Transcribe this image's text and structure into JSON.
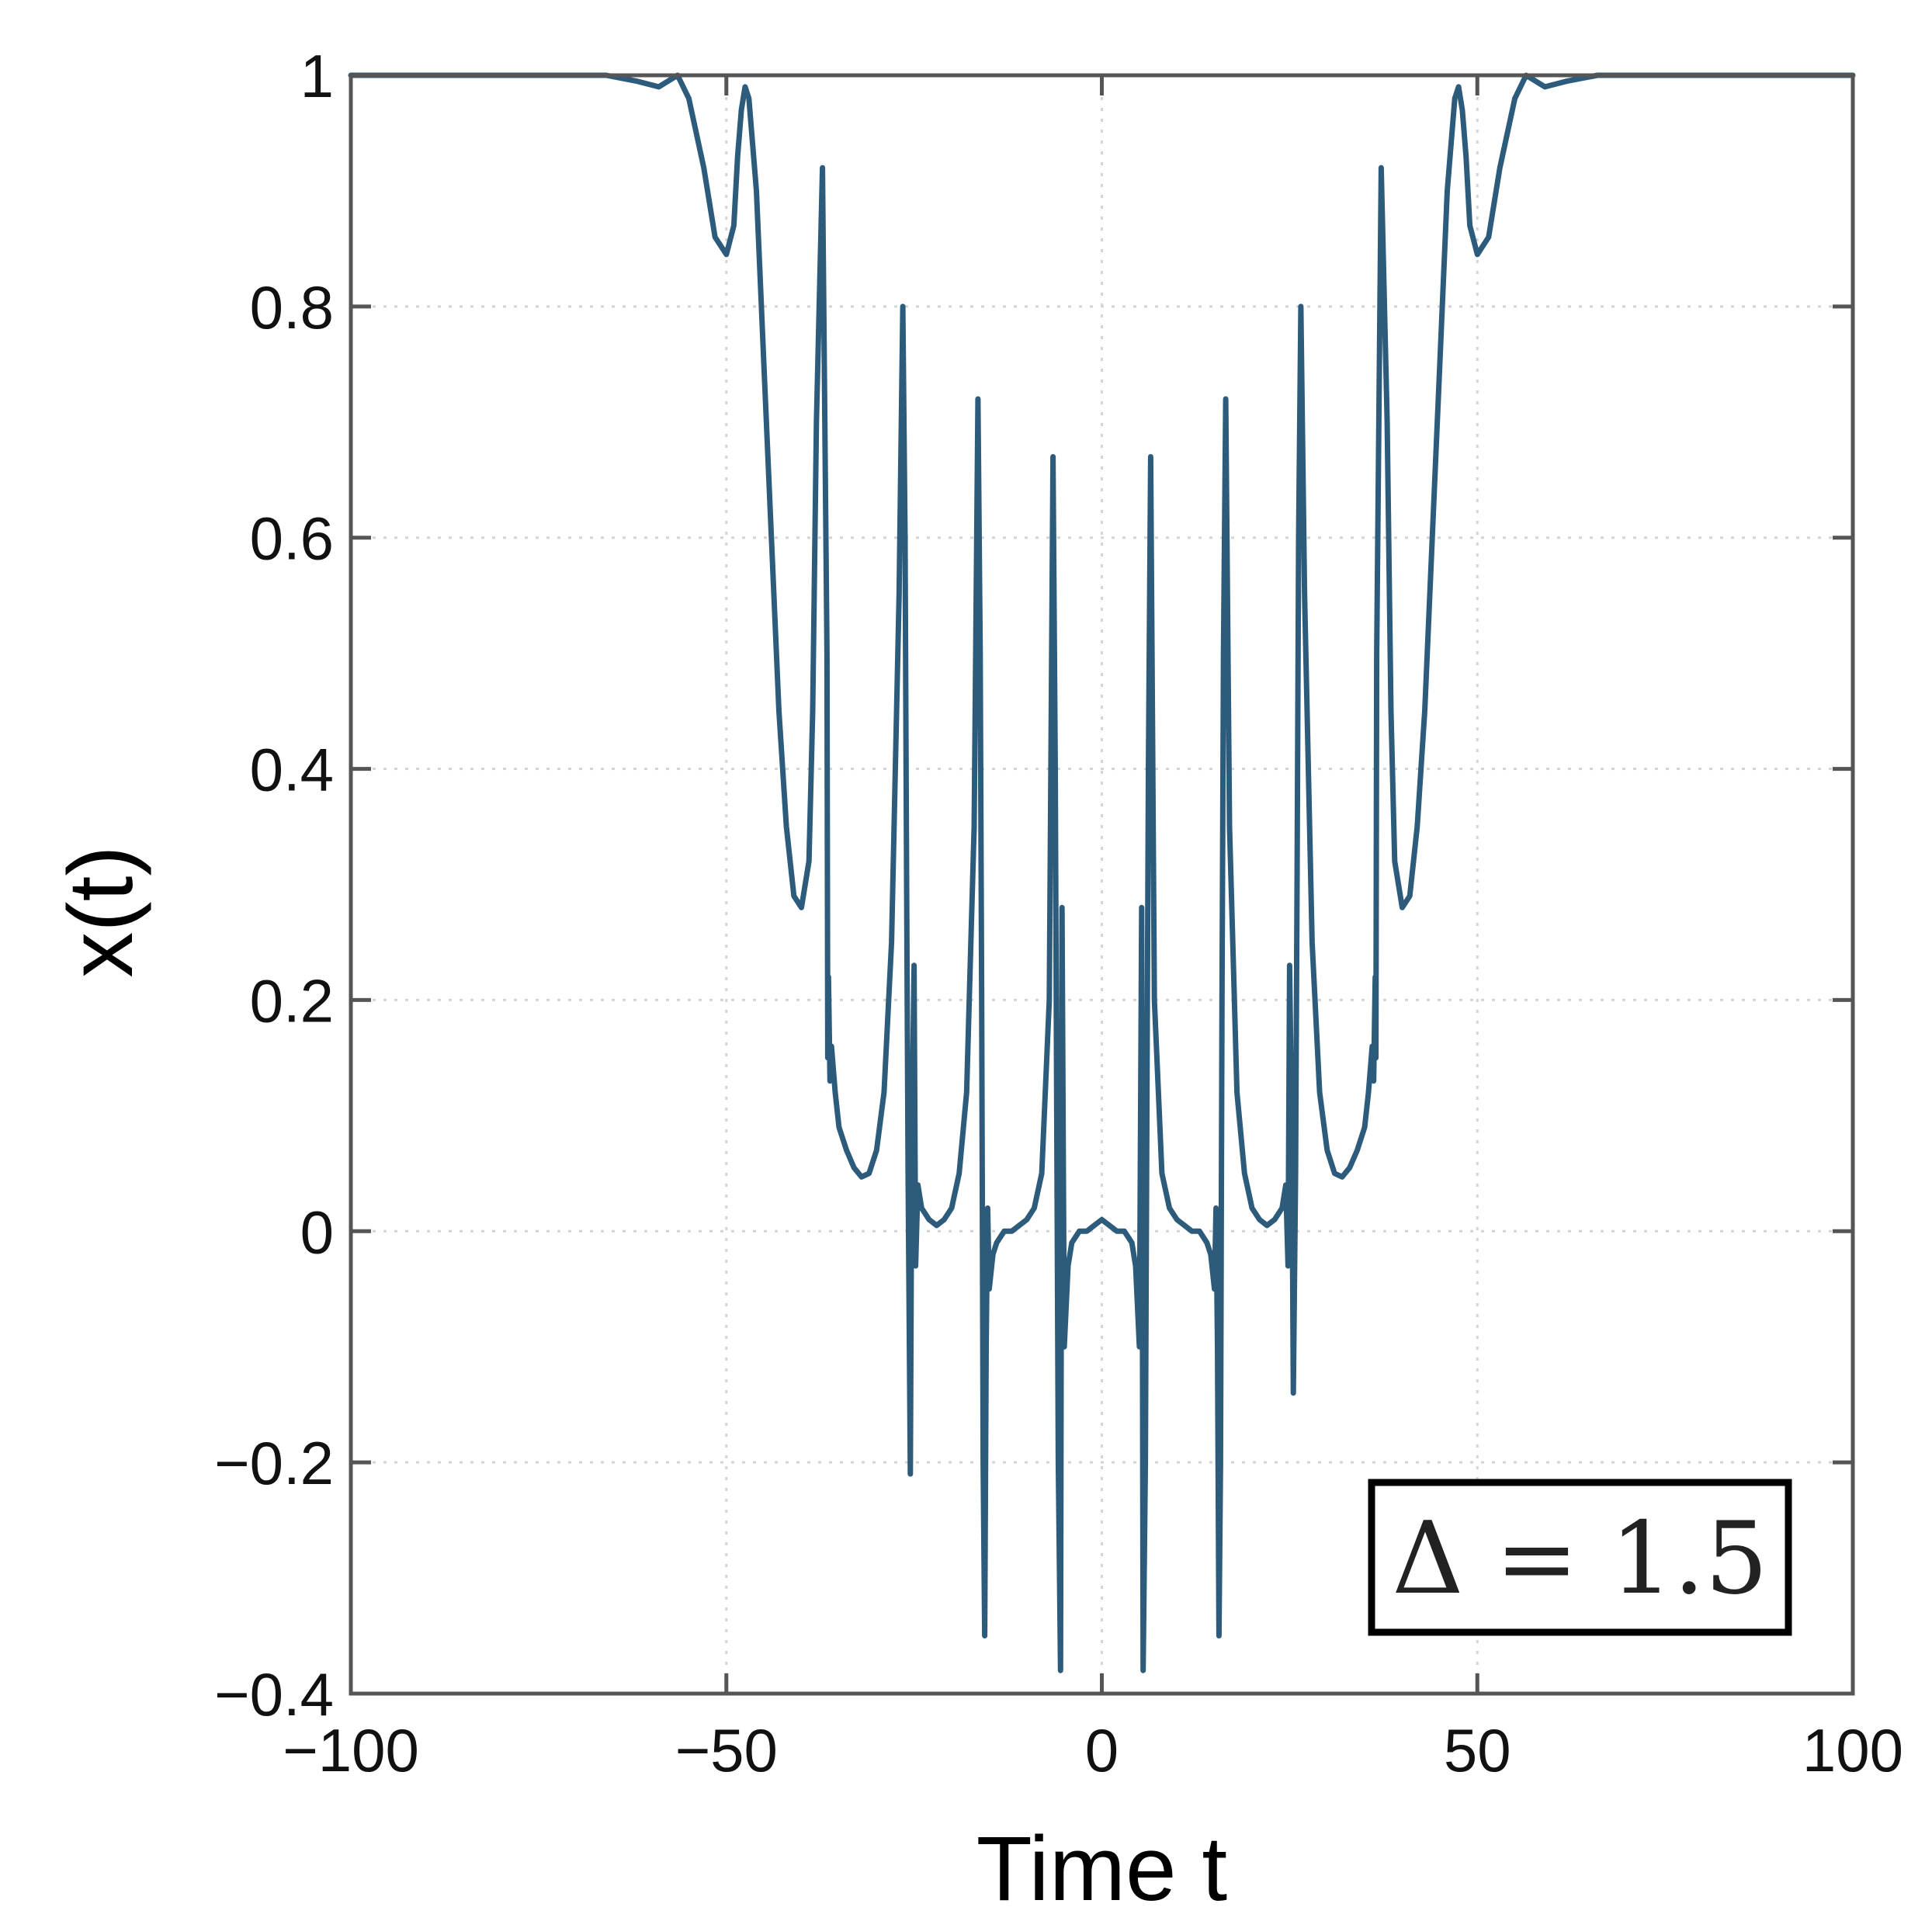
{
  "chart_data": {
    "type": "line",
    "title": "",
    "xlabel": "Time t",
    "ylabel": "x(t)",
    "xlim": [
      -100,
      100
    ],
    "ylim": [
      -0.4,
      1
    ],
    "x_ticks": [
      -100,
      -50,
      0,
      50,
      100
    ],
    "x_tick_labels": [
      "−100",
      "−50",
      "0",
      "50",
      "100"
    ],
    "y_ticks": [
      -0.4,
      -0.2,
      0,
      0.2,
      0.4,
      0.6,
      0.8,
      1
    ],
    "y_tick_labels": [
      "−0.4",
      "−0.2",
      "0",
      "0.2",
      "0.4",
      "0.6",
      "0.8",
      "1"
    ],
    "grid": true,
    "annotation": "Δ = 1.5",
    "annotation_position": "bottom-right",
    "series": [
      {
        "color": "#2d5b7b",
        "x": [
          -100,
          -66,
          -62,
          -59,
          -56.5,
          -55,
          -53,
          -51.5,
          -50,
          -49,
          -48.5,
          -48,
          -47.5,
          -47,
          -46,
          -45,
          -44,
          -43,
          -42,
          -41,
          -40,
          -39,
          -38.5,
          -38,
          -37.2,
          -36.6,
          -36.5,
          -36.4,
          -36.2,
          -36,
          -35.5,
          -35,
          -34,
          -33,
          -32,
          -31,
          -30,
          -29,
          -28,
          -27,
          -26.5,
          -26.2,
          -26,
          -25.8,
          -25.5,
          -25.3,
          -25,
          -24.8,
          -24.5,
          -24,
          -23.5,
          -23,
          -22,
          -21,
          -20,
          -19,
          -18,
          -17,
          -16.5,
          -16.2,
          -16,
          -15.8,
          -15.6,
          -15.4,
          -15.2,
          -15,
          -14.5,
          -14,
          -13,
          -12,
          -10,
          -9,
          -8,
          -7,
          -6.5,
          -6.2,
          -6,
          -5.8,
          -5.5,
          -5.3,
          -5,
          -4.5,
          -4,
          -3,
          -2,
          -1,
          0,
          1,
          2,
          3,
          4,
          4.5,
          5,
          5.3,
          5.5,
          5.8,
          6,
          6.2,
          6.5,
          7,
          8,
          9,
          10,
          12,
          13,
          14,
          14.5,
          15,
          15.2,
          15.4,
          15.6,
          15.8,
          16,
          16.2,
          16.5,
          17,
          18,
          19,
          20,
          21,
          22,
          23,
          23.5,
          24,
          24.5,
          24.8,
          25,
          25.3,
          25.5,
          25.8,
          26,
          26.2,
          26.5,
          27,
          28,
          29,
          30,
          31,
          32,
          33,
          34,
          35,
          35.5,
          36,
          36.2,
          36.4,
          36.5,
          36.6,
          37.2,
          38,
          38.5,
          39,
          40,
          41,
          42,
          43,
          44,
          45,
          46,
          47,
          47.5,
          48,
          48.5,
          49,
          50,
          51.5,
          53,
          55,
          56.5,
          59,
          62,
          66,
          100
        ],
        "y": [
          1,
          1,
          0.995,
          0.99,
          1,
          0.98,
          0.92,
          0.86,
          0.845,
          0.87,
          0.93,
          0.97,
          0.99,
          0.98,
          0.9,
          0.75,
          0.6,
          0.45,
          0.35,
          0.29,
          0.28,
          0.32,
          0.45,
          0.7,
          0.92,
          0.5,
          0.15,
          0.22,
          0.13,
          0.16,
          0.12,
          0.09,
          0.07,
          0.055,
          0.047,
          0.05,
          0.07,
          0.12,
          0.25,
          0.55,
          0.8,
          0.6,
          0.3,
          0.05,
          -0.21,
          0.08,
          0.23,
          -0.03,
          0.04,
          0.02,
          0.015,
          0.01,
          0.005,
          0.01,
          0.02,
          0.05,
          0.12,
          0.35,
          0.72,
          0.5,
          0.2,
          -0.2,
          -0.35,
          -0.1,
          0.02,
          -0.05,
          -0.02,
          -0.01,
          0,
          0,
          0.01,
          0.02,
          0.05,
          0.2,
          0.67,
          0.4,
          0.1,
          -0.2,
          -0.38,
          0.28,
          -0.1,
          -0.03,
          -0.01,
          0,
          0,
          0.005,
          0.01,
          0.005,
          0,
          0,
          -0.01,
          -0.03,
          -0.1,
          0.28,
          -0.38,
          -0.2,
          0.1,
          0.4,
          0.67,
          0.2,
          0.05,
          0.02,
          0.01,
          0,
          0,
          -0.01,
          -0.02,
          -0.05,
          0.02,
          -0.1,
          -0.35,
          -0.2,
          0.2,
          0.5,
          0.72,
          0.35,
          0.12,
          0.05,
          0.02,
          0.01,
          0.005,
          0.01,
          0.015,
          0.02,
          0.04,
          -0.03,
          0.23,
          0.08,
          -0.14,
          0.05,
          0.3,
          0.6,
          0.8,
          0.55,
          0.25,
          0.12,
          0.07,
          0.05,
          0.047,
          0.055,
          0.07,
          0.09,
          0.12,
          0.16,
          0.13,
          0.22,
          0.15,
          0.5,
          0.92,
          0.7,
          0.45,
          0.32,
          0.28,
          0.29,
          0.35,
          0.45,
          0.6,
          0.75,
          0.9,
          0.98,
          0.99,
          0.97,
          0.93,
          0.87,
          0.845,
          0.86,
          0.92,
          0.98,
          1,
          0.99,
          0.995,
          1,
          1
        ]
      }
    ]
  }
}
